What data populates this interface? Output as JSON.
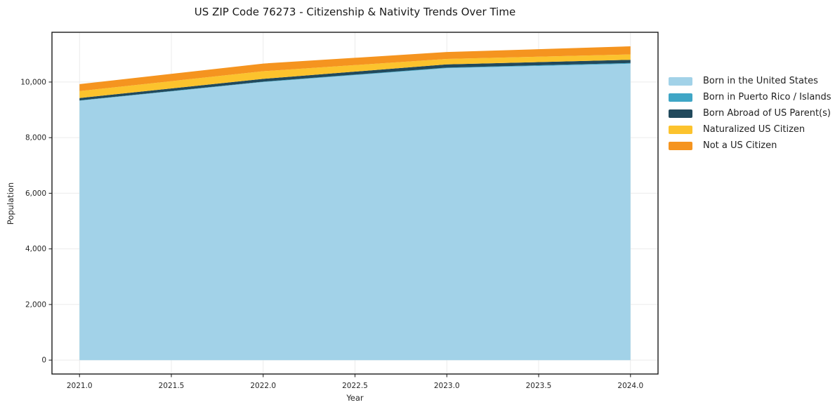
{
  "chart_data": {
    "type": "area",
    "stacked": true,
    "title": "US ZIP Code 76273 - Citizenship & Nativity Trends Over Time",
    "xlabel": "Year",
    "ylabel": "Population",
    "x": [
      2021,
      2022,
      2023,
      2024
    ],
    "series": [
      {
        "name": "Born in the United States",
        "color": "#a2d2e8",
        "values": [
          9330,
          10000,
          10500,
          10660
        ]
      },
      {
        "name": "Born in Puerto Rico / Islands",
        "color": "#3fa6c6",
        "values": [
          10,
          15,
          20,
          25
        ]
      },
      {
        "name": "Born Abroad of US Parent(s)",
        "color": "#21495c",
        "values": [
          85,
          100,
          115,
          115
        ]
      },
      {
        "name": "Naturalized US Citizen",
        "color": "#fcc32d",
        "values": [
          250,
          275,
          195,
          195
        ]
      },
      {
        "name": "Not a US Citizen",
        "color": "#f5941f",
        "values": [
          250,
          275,
          250,
          290
        ]
      }
    ],
    "xticks": [
      2021.0,
      2021.5,
      2022.0,
      2022.5,
      2023.0,
      2023.5,
      2024.0
    ],
    "xtick_labels": [
      "2021.0",
      "2021.5",
      "2022.0",
      "2022.5",
      "2023.0",
      "2023.5",
      "2024.0"
    ],
    "yticks": [
      0,
      2000,
      4000,
      6000,
      8000,
      10000
    ],
    "ytick_labels": [
      "0",
      "2,000",
      "4,000",
      "6,000",
      "8,000",
      "10,000"
    ],
    "xlim": [
      2020.85,
      2024.15
    ],
    "ylim": [
      -500,
      11790
    ],
    "grid": true,
    "grid_color": "#ebebeb",
    "spine_color": "#1a1a1a",
    "tick_color": "#262626",
    "legend_position": "right",
    "legend_frame": false
  }
}
